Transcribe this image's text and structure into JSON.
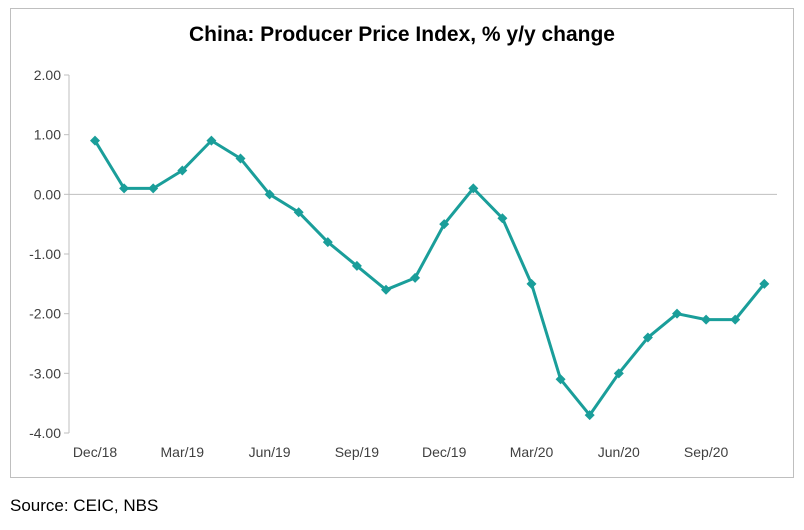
{
  "source_note": "Source: CEIC, NBS",
  "chart_data": {
    "type": "line",
    "title": "China: Producer Price Index, % y/y change",
    "xlabel": "",
    "ylabel": "",
    "x": [
      "Dec/18",
      "Jan/19",
      "Feb/19",
      "Mar/19",
      "Apr/19",
      "May/19",
      "Jun/19",
      "Jul/19",
      "Aug/19",
      "Sep/19",
      "Oct/19",
      "Nov/19",
      "Dec/19",
      "Jan/20",
      "Feb/20",
      "Mar/20",
      "Apr/20",
      "May/20",
      "Jun/20",
      "Jul/20",
      "Aug/20",
      "Sep/20",
      "Oct/20",
      "Nov/20"
    ],
    "x_tick_labels": [
      "Dec/18",
      "Mar/19",
      "Jun/19",
      "Sep/19",
      "Dec/19",
      "Mar/20",
      "Jun/20",
      "Sep/20"
    ],
    "y_tick_labels": [
      "2.00",
      "1.00",
      "0.00",
      "-1.00",
      "-2.00",
      "-3.00",
      "-4.00"
    ],
    "ylim": [
      -4,
      2
    ],
    "grid": false,
    "series": [
      {
        "values": [
          0.9,
          0.1,
          0.1,
          0.4,
          0.9,
          0.6,
          0.0,
          -0.3,
          -0.8,
          -1.2,
          -1.6,
          -1.4,
          -0.5,
          0.1,
          -0.4,
          -1.5,
          -3.1,
          -3.7,
          -3.0,
          -2.4,
          -2.0,
          -2.1,
          -2.1,
          -1.5
        ],
        "color": "#1a9e9a"
      }
    ]
  }
}
